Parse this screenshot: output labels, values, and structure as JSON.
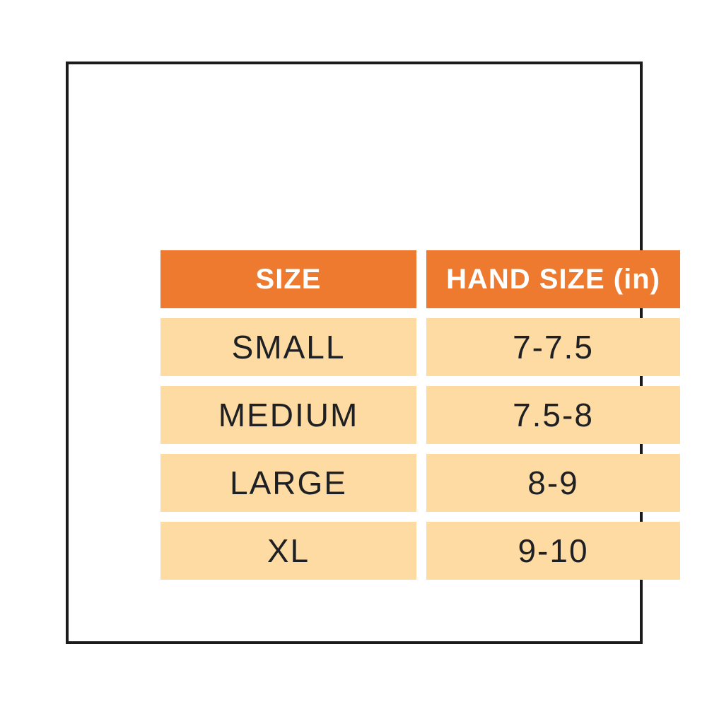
{
  "table": {
    "headers": [
      "SIZE",
      "HAND SIZE (in)"
    ],
    "rows": [
      [
        "SMALL",
        "7-7.5"
      ],
      [
        "MEDIUM",
        "7.5-8"
      ],
      [
        "LARGE",
        "8-9"
      ],
      [
        "XL",
        "9-10"
      ]
    ]
  },
  "colors": {
    "header_background": "#ED7A2E",
    "header_text": "#FFFFFF",
    "row_background": "#FDDBA3",
    "row_text": "#1E2023",
    "frame_border": "#1B1B1B",
    "page_background": "#FFFFFF"
  },
  "chart_data": {
    "type": "table",
    "title": "",
    "columns": [
      "SIZE",
      "HAND SIZE (in)"
    ],
    "rows": [
      {
        "size": "SMALL",
        "hand_size_in": "7-7.5"
      },
      {
        "size": "MEDIUM",
        "hand_size_in": "7.5-8"
      },
      {
        "size": "LARGE",
        "hand_size_in": "8-9"
      },
      {
        "size": "XL",
        "hand_size_in": "9-10"
      }
    ]
  }
}
